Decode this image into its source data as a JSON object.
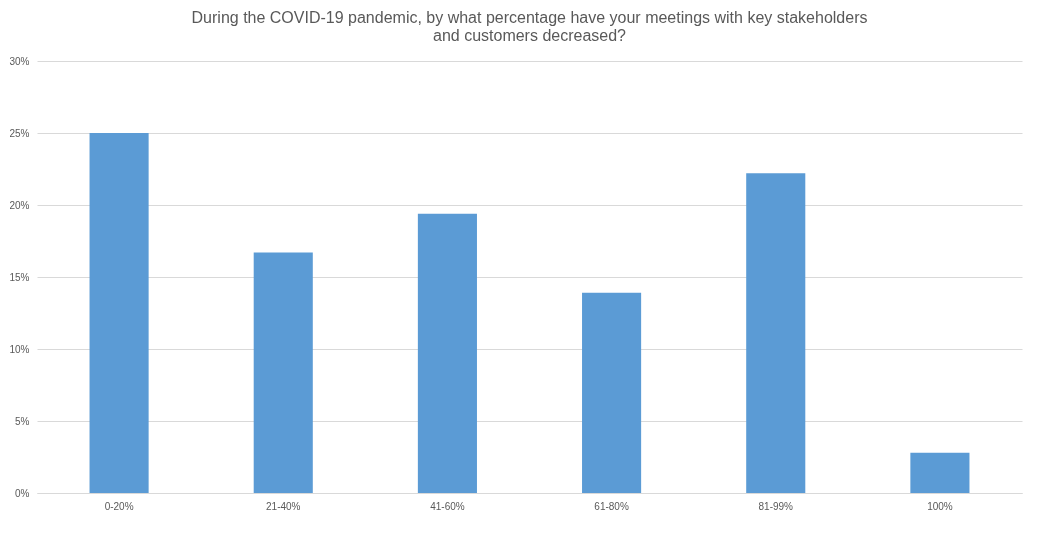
{
  "chart_data": {
    "type": "bar",
    "title": "During the COVID-19 pandemic, by what percentage have your meetings with key stakeholders and customers decreased?",
    "categories": [
      "0-20%",
      "21-40%",
      "41-60%",
      "61-80%",
      "81-99%",
      "100%"
    ],
    "values": [
      25,
      16.7,
      19.4,
      13.9,
      22.2,
      2.8
    ],
    "color": "#5b9bd5",
    "ylim": [
      0,
      30
    ],
    "yticks": [
      {
        "value": 0,
        "label": "0%"
      },
      {
        "value": 5,
        "label": "5%"
      },
      {
        "value": 10,
        "label": "10%"
      },
      {
        "value": 15,
        "label": "15%"
      },
      {
        "value": 20,
        "label": "20%"
      },
      {
        "value": 25,
        "label": "25%"
      },
      {
        "value": 30,
        "label": "30%"
      }
    ],
    "grid": "y"
  }
}
